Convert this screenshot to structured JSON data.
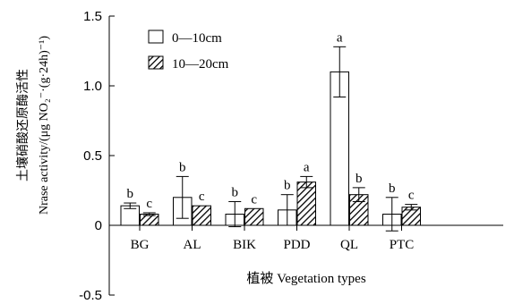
{
  "chart_data": {
    "type": "bar",
    "categories": [
      "BG",
      "AL",
      "BIK",
      "PDD",
      "QL",
      "PTC"
    ],
    "series": [
      {
        "name": "0—10cm",
        "values": [
          0.14,
          0.2,
          0.08,
          0.11,
          1.1,
          0.08
        ],
        "errors": [
          0.02,
          0.15,
          0.09,
          0.11,
          0.18,
          0.12
        ],
        "labels": [
          "b",
          "b",
          "b",
          "b",
          "a",
          "b"
        ],
        "fill": "#ffffff"
      },
      {
        "name": "10—20cm",
        "values": [
          0.08,
          0.14,
          0.12,
          0.31,
          0.22,
          0.13
        ],
        "errors": [
          0.01,
          0.0,
          0.0,
          0.04,
          0.05,
          0.02
        ],
        "labels": [
          "c",
          "c",
          "c",
          "a",
          "b",
          "c"
        ],
        "fill": "hatch"
      }
    ],
    "xlabel": "植被 Vegetation types",
    "ylabel_line1": "土壤硝酸还原酶活性",
    "ylabel_line2": "Nrase activity/(μg NO₂⁻·(g·24h)⁻¹)",
    "ylim": [
      -0.5,
      1.5
    ],
    "yticks": [
      "-0.5",
      "0",
      "0.5",
      "1.0",
      "1.5"
    ],
    "ytick_values": [
      -0.5,
      0,
      0.5,
      1.0,
      1.5
    ],
    "legend_position": "top-left",
    "grid": false
  }
}
